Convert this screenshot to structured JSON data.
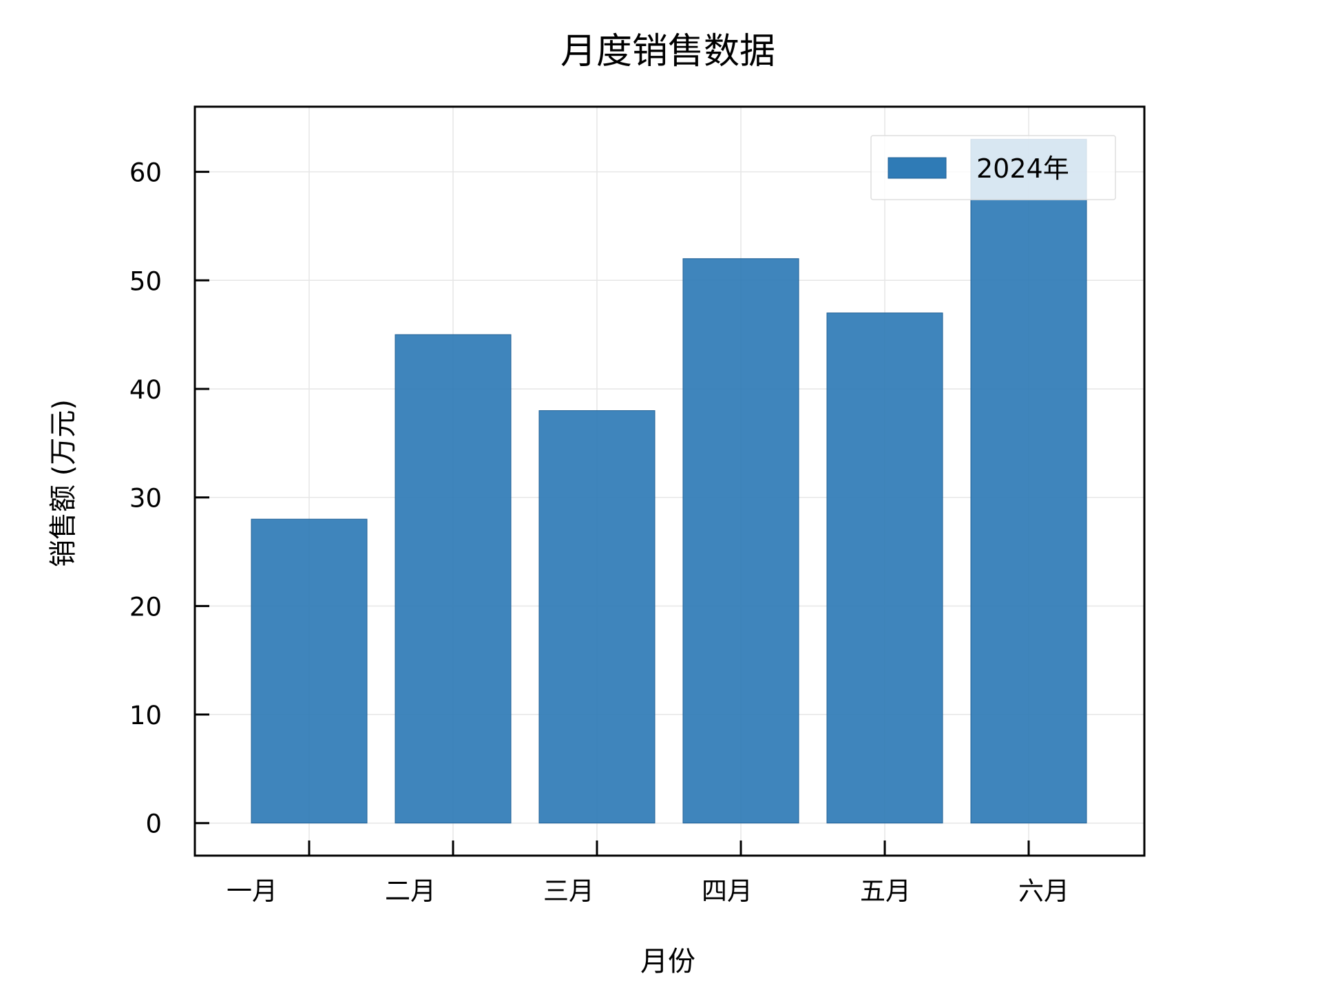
{
  "chart_data": {
    "type": "bar",
    "title": "月度销售数据",
    "xlabel": "月份",
    "ylabel": "销售额 (万元)",
    "categories": [
      "一月",
      "二月",
      "三月",
      "四月",
      "五月",
      "六月"
    ],
    "series": [
      {
        "name": "2024年",
        "values": [
          28,
          45,
          38,
          52,
          47,
          63
        ],
        "color": "#2f7bb6"
      }
    ],
    "ylim": [
      -3,
      66
    ],
    "yticks": [
      0,
      10,
      20,
      30,
      40,
      50,
      60
    ],
    "ytick_labels": [
      "0",
      "10",
      "20",
      "30",
      "40",
      "50",
      "60"
    ],
    "grid": true,
    "legend_position": "top-right"
  }
}
